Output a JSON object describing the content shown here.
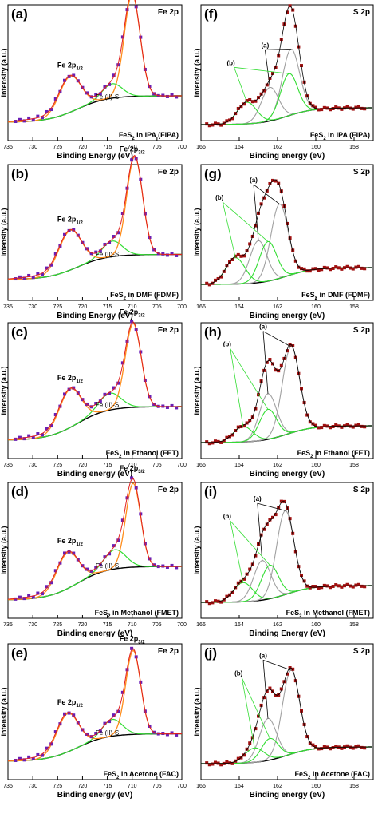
{
  "colors": {
    "fe_data": "#6a1fb5",
    "s_data": "#a01010",
    "envelope": "#ff8c1a",
    "fit_red": "#e02020",
    "background": "#000000",
    "component_green": "#33dd33",
    "component_gray": "#a0a0a0"
  },
  "chart_data": [
    {
      "type": "line",
      "label": "(a)",
      "element": "Fe 2p",
      "sample_pre": "FeS",
      "sample_sub": "2",
      "sample_post": " in IPA (FIPA)",
      "xlabel": "Binding Energy (eV)",
      "ylabel": "Intensity (a.u.)",
      "xlim": [
        735,
        700
      ],
      "xticks": [
        "735",
        "730",
        "725",
        "720",
        "715",
        "710",
        "705",
        "700"
      ],
      "annotations": [
        {
          "base": "Fe 2p",
          "sub": "1/2",
          "x": 722.5
        },
        {
          "base": "Fe 2p",
          "sub": "3/2",
          "x": 710
        },
        {
          "text": "Fe (II)-S",
          "x": 715
        }
      ]
    },
    {
      "type": "line",
      "label": "(f)",
      "element": "S 2p",
      "sample_pre": "FeS",
      "sample_sub": "2",
      "sample_post": " in IPA (FIPA)",
      "xlabel": "Binding energy (eV)",
      "ylabel": "Intensity (a.u.)",
      "xlim": [
        166,
        157
      ],
      "xticks": [
        "166",
        "164",
        "162",
        "160",
        "158"
      ],
      "annotations": [
        {
          "text": "(a)"
        },
        {
          "text": "(b)"
        }
      ]
    },
    {
      "type": "line",
      "label": "(b)",
      "element": "Fe 2p",
      "sample_pre": "FeS",
      "sample_sub": "2",
      "sample_post": " in DMF (FDMF)",
      "xlabel": "Binding Energy (eV)",
      "ylabel": "Intensity (a.u.)",
      "xlim": [
        735,
        700
      ],
      "xticks": [
        "735",
        "730",
        "725",
        "720",
        "715",
        "710",
        "705",
        "700"
      ],
      "annotations": [
        {
          "base": "Fe 2p",
          "sub": "1/2",
          "x": 722.5
        },
        {
          "base": "Fe 2p",
          "sub": "3/2",
          "x": 710
        },
        {
          "text": "Fe (II)-S",
          "x": 715
        }
      ]
    },
    {
      "type": "line",
      "label": "(g)",
      "element": "S 2p",
      "sample_pre": "FeS",
      "sample_sub": "2",
      "sample_post": " in DMF (FDMF)",
      "xlabel": "Binding energy (eV)",
      "ylabel": "Intensity (a.u.)",
      "xlim": [
        166,
        157
      ],
      "xticks": [
        "166",
        "164",
        "162",
        "160",
        "158"
      ],
      "annotations": [
        {
          "text": "(a)"
        },
        {
          "text": "(b)"
        }
      ]
    },
    {
      "type": "line",
      "label": "(c)",
      "element": "Fe 2p",
      "sample_pre": "FeS",
      "sample_sub": "2",
      "sample_post": " in Ethanol (FET)",
      "xlabel": "Binding energy (eV)",
      "ylabel": "Intensity (a.u.)",
      "xlim": [
        735,
        700
      ],
      "xticks": [
        "735",
        "730",
        "725",
        "720",
        "715",
        "710",
        "705",
        "700"
      ],
      "annotations": [
        {
          "base": "Fe 2p",
          "sub": "1/2",
          "x": 722.5
        },
        {
          "base": "Fe 2p",
          "sub": "3/2",
          "x": 710
        },
        {
          "text": "Fe (II)-S",
          "x": 715
        }
      ]
    },
    {
      "type": "line",
      "label": "(h)",
      "element": "S 2p",
      "sample_pre": "FeS",
      "sample_sub": "2",
      "sample_post": " in Ethanol (FET)",
      "xlabel": "Binding energy (eV)",
      "ylabel": "Intensity (a.u.)",
      "xlim": [
        166,
        157
      ],
      "xticks": [
        "166",
        "164",
        "162",
        "160",
        "158"
      ],
      "annotations": [
        {
          "text": "(a)"
        },
        {
          "text": "(b)"
        }
      ]
    },
    {
      "type": "line",
      "label": "(d)",
      "element": "Fe 2p",
      "sample_pre": "FeS",
      "sample_sub": "2",
      "sample_post": " in Methanol (FMET)",
      "xlabel": "Binding energy (eV)",
      "ylabel": "Intensity (a.u.)",
      "xlim": [
        735,
        700
      ],
      "xticks": [
        "735",
        "730",
        "725",
        "720",
        "715",
        "710",
        "705",
        "700"
      ],
      "annotations": [
        {
          "base": "Fe 2p",
          "sub": "1/2",
          "x": 722.5
        },
        {
          "base": "Fe 2p",
          "sub": "3/2",
          "x": 710
        },
        {
          "text": "Fe (II)-S",
          "x": 715
        }
      ]
    },
    {
      "type": "line",
      "label": "(i)",
      "element": "S 2p",
      "sample_pre": "FeS",
      "sample_sub": "2",
      "sample_post": " in Methanol (FMET)",
      "xlabel": "Binding Energy (eV)",
      "ylabel": "Intensity (a.u.)",
      "xlim": [
        166,
        157
      ],
      "xticks": [
        "166",
        "164",
        "162",
        "160",
        "158"
      ],
      "annotations": [
        {
          "text": "(a)"
        },
        {
          "text": "(b)"
        }
      ]
    },
    {
      "type": "line",
      "label": "(e)",
      "element": "Fe 2p",
      "sample_pre": "FeS",
      "sample_sub": "2",
      "sample_post": " in Acetone (FAC)",
      "xlabel": "Binding energy (eV)",
      "ylabel": "Intensity (a.u.)",
      "xlim": [
        735,
        700
      ],
      "xticks": [
        "735",
        "730",
        "725",
        "720",
        "715",
        "710",
        "705",
        "700"
      ],
      "annotations": [
        {
          "base": "Fe 2p",
          "sub": "1/2",
          "x": 722.5
        },
        {
          "base": "Fe 2p",
          "sub": "3/2",
          "x": 710
        },
        {
          "text": "Fe (II)-S",
          "x": 715
        }
      ]
    },
    {
      "type": "line",
      "label": "(j)",
      "element": "S 2p",
      "sample_pre": "FeS",
      "sample_sub": "2",
      "sample_post": " in Acetone (FAC)",
      "xlabel": "Binding energy (eV)",
      "ylabel": "Intensity (a.u.)",
      "xlim": [
        166,
        157
      ],
      "xticks": [
        "166",
        "164",
        "162",
        "160",
        "158"
      ],
      "annotations": [
        {
          "text": "(a)"
        },
        {
          "text": "(b)"
        }
      ]
    }
  ]
}
